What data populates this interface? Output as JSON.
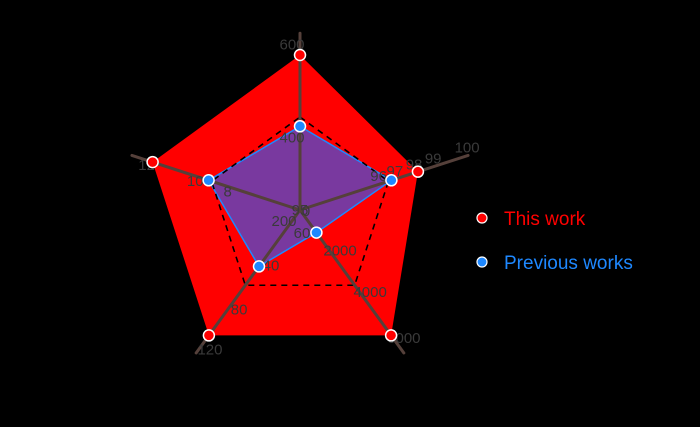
{
  "chart_data": {
    "type": "radar",
    "axes": [
      {
        "ticks": [
          "400",
          "600"
        ]
      },
      {
        "ticks": [
          "96",
          "97",
          "98",
          "99",
          "100"
        ]
      },
      {
        "ticks": [
          "2000",
          "4000",
          "6000"
        ]
      },
      {
        "ticks": [
          "40",
          "80",
          "120"
        ]
      },
      {
        "ticks": [
          "8",
          "10",
          "12"
        ]
      }
    ],
    "center_labels": [
      "95",
      "200",
      "60",
      "0"
    ],
    "series": [
      {
        "name": "This work",
        "color": "#ff0000",
        "fill": "#ff0000",
        "values": [
          600,
          99,
          6000,
          120,
          12
        ]
      },
      {
        "name": "Previous works",
        "color": "#1e88ff",
        "fill": "#6a3fb0",
        "values": [
          400,
          98,
          2000,
          40,
          10
        ]
      }
    ],
    "reference_polygon": {
      "style": "dashed",
      "level": 0.6
    },
    "legend": {
      "position": "right"
    }
  }
}
